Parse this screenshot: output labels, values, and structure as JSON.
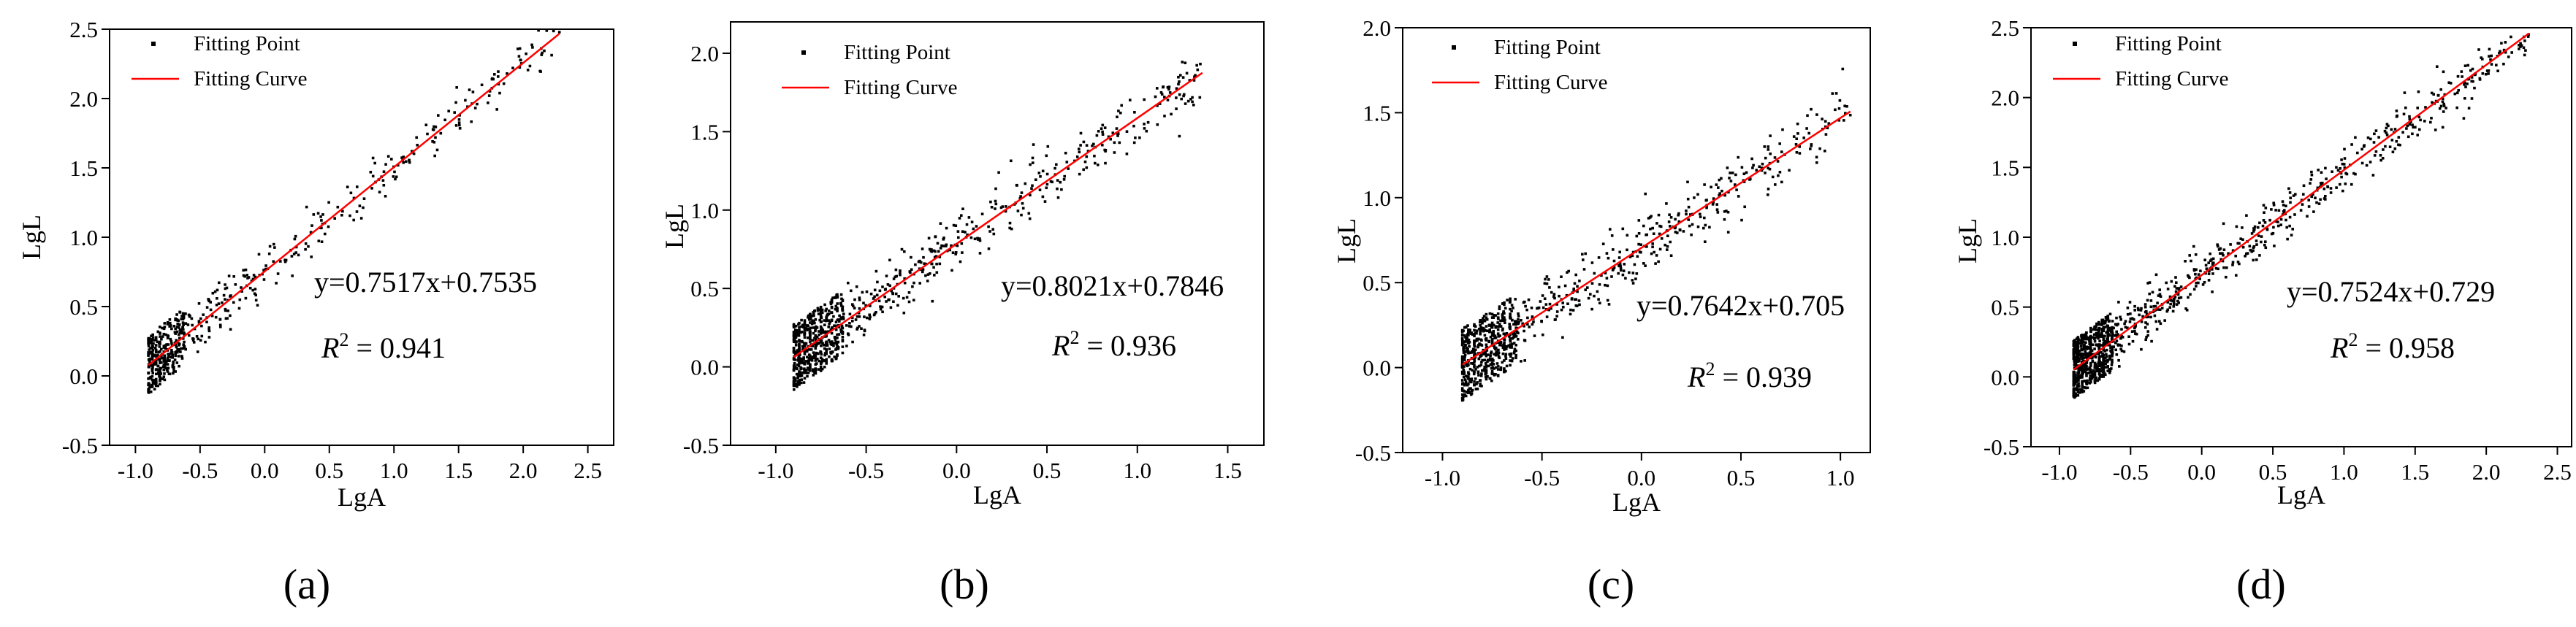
{
  "figure": {
    "x_label": "LgA",
    "y_label": "LgL",
    "legend_points": "Fitting Point",
    "legend_curve": "Fitting Curve",
    "r2_prefix": "R",
    "r2_sup": "2"
  },
  "colors": {
    "curve": "#ff0000",
    "points": "#000000",
    "axis": "#000000"
  },
  "chart_data": [
    {
      "type": "scatter",
      "panel_label": "(a)",
      "title": "",
      "xlabel": "LgA",
      "ylabel": "LgL",
      "xlim": [
        -1.2,
        2.7
      ],
      "ylim": [
        -0.5,
        2.5
      ],
      "xticks": [
        "-1.0",
        "-0.5",
        "0.0",
        "0.5",
        "1.0",
        "1.5",
        "2.0",
        "2.5"
      ],
      "xtick_values": [
        -1.0,
        -0.5,
        0.0,
        0.5,
        1.0,
        1.5,
        2.0,
        2.5
      ],
      "yticks": [
        "-0.5",
        "0.0",
        "0.5",
        "1.0",
        "1.5",
        "2.0",
        "2.5"
      ],
      "ytick_values": [
        -0.5,
        0.0,
        0.5,
        1.0,
        1.5,
        2.0,
        2.5
      ],
      "series": [
        {
          "name": "Fitting Point",
          "kind": "points",
          "x_range": [
            -0.9,
            2.28
          ],
          "n_points": 600
        },
        {
          "name": "Fitting Curve",
          "kind": "line",
          "slope": 0.7517,
          "intercept": 0.7535,
          "x_range": [
            -0.9,
            2.28
          ]
        }
      ],
      "equation": "y=0.7517x+0.7535",
      "r2_value": "= 0.941",
      "legend_position": "top-left"
    },
    {
      "type": "scatter",
      "panel_label": "(b)",
      "title": "",
      "xlabel": "LgA",
      "ylabel": "LgL",
      "xlim": [
        -1.25,
        1.7
      ],
      "ylim": [
        -0.5,
        2.2
      ],
      "xticks": [
        "-1.0",
        "-0.5",
        "0.0",
        "0.5",
        "1.0",
        "1.5"
      ],
      "xtick_values": [
        -1.0,
        -0.5,
        0.0,
        0.5,
        1.0,
        1.5
      ],
      "yticks": [
        "-0.5",
        "0.0",
        "0.5",
        "1.0",
        "1.5",
        "2.0"
      ],
      "ytick_values": [
        -0.5,
        0.0,
        0.5,
        1.0,
        1.5,
        2.0
      ],
      "series": [
        {
          "name": "Fitting Point",
          "kind": "points",
          "x_range": [
            -0.9,
            1.36
          ],
          "n_points": 900
        },
        {
          "name": "Fitting Curve",
          "kind": "line",
          "slope": 0.8021,
          "intercept": 0.7846,
          "x_range": [
            -0.9,
            1.36
          ]
        }
      ],
      "equation": "y=0.8021x+0.7846",
      "r2_value": "= 0.936",
      "legend_position": "top-left"
    },
    {
      "type": "scatter",
      "panel_label": "(c)",
      "title": "",
      "xlabel": "LgA",
      "ylabel": "LgL",
      "xlim": [
        -1.2,
        1.15
      ],
      "ylim": [
        -0.5,
        2.0
      ],
      "xticks": [
        "-1.0",
        "-0.5",
        "0.0",
        "0.5",
        "1.0"
      ],
      "xtick_values": [
        -1.0,
        -0.5,
        0.0,
        0.5,
        1.0
      ],
      "yticks": [
        "-0.5",
        "0.0",
        "0.5",
        "1.0",
        "1.5",
        "2.0"
      ],
      "ytick_values": [
        -0.5,
        0.0,
        0.5,
        1.0,
        1.5,
        2.0
      ],
      "series": [
        {
          "name": "Fitting Point",
          "kind": "points",
          "x_range": [
            -0.9,
            1.05
          ],
          "n_points": 900
        },
        {
          "name": "Fitting Curve",
          "kind": "line",
          "slope": 0.7642,
          "intercept": 0.705,
          "x_range": [
            -0.9,
            1.05
          ]
        }
      ],
      "equation": "y=0.7642x+0.705",
      "r2_value": "= 0.939",
      "legend_position": "top-left"
    },
    {
      "type": "scatter",
      "panel_label": "(d)",
      "title": "",
      "xlabel": "LgA",
      "ylabel": "LgL",
      "xlim": [
        -1.2,
        2.6
      ],
      "ylim": [
        -0.5,
        2.5
      ],
      "xticks": [
        "-1.0",
        "-0.5",
        "0.0",
        "0.5",
        "1.0",
        "1.5",
        "2.0",
        "2.5"
      ],
      "xtick_values": [
        -1.0,
        -0.5,
        0.0,
        0.5,
        1.0,
        1.5,
        2.0,
        2.5
      ],
      "yticks": [
        "-0.5",
        "0.0",
        "0.5",
        "1.0",
        "1.5",
        "2.0",
        "2.5"
      ],
      "ytick_values": [
        -0.5,
        0.0,
        0.5,
        1.0,
        1.5,
        2.0,
        2.5
      ],
      "series": [
        {
          "name": "Fitting Point",
          "kind": "points",
          "x_range": [
            -0.9,
            2.3
          ],
          "n_points": 1200
        },
        {
          "name": "Fitting Curve",
          "kind": "line",
          "slope": 0.7524,
          "intercept": 0.729,
          "x_range": [
            -0.9,
            2.3
          ]
        }
      ],
      "equation": "y=0.7524x+0.729",
      "r2_value": "= 0.958",
      "legend_position": "top-left"
    }
  ]
}
